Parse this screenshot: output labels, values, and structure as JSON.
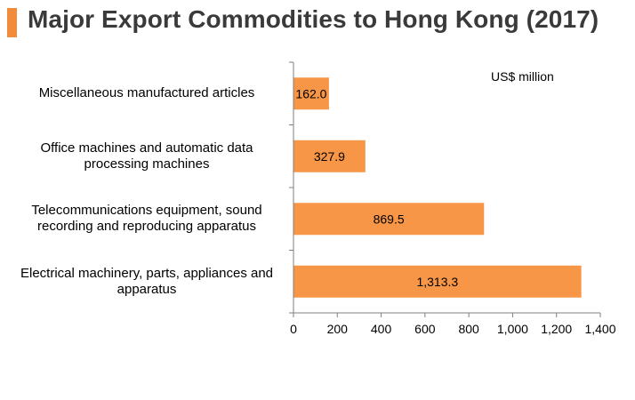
{
  "title": "Major Export Commodities to Hong Kong (2017)",
  "colors": {
    "accent": "#F28C3B",
    "bar": "#F79646",
    "axis": "#7f7f7f"
  },
  "chart_data": {
    "type": "bar",
    "orientation": "horizontal",
    "unit_label": "US$ million",
    "categories": [
      [
        "Miscellaneous manufactured articles"
      ],
      [
        "Office machines and automatic data",
        "processing machines"
      ],
      [
        "Telecommunications equipment, sound",
        "recording and reproducing apparatus"
      ],
      [
        "Electrical machinery, parts, appliances and",
        "apparatus"
      ]
    ],
    "values": [
      162.0,
      327.9,
      869.5,
      1313.3
    ],
    "value_labels": [
      "162.0",
      "327.9",
      "869.5",
      "1,313.3"
    ],
    "xlim": [
      0,
      1400
    ],
    "xticks": [
      0,
      200,
      400,
      600,
      800,
      1000,
      1200,
      1400
    ],
    "xtick_labels": [
      "0",
      "200",
      "400",
      "600",
      "800",
      "1,000",
      "1,200",
      "1,400"
    ],
    "grid": false,
    "legend": "none"
  }
}
